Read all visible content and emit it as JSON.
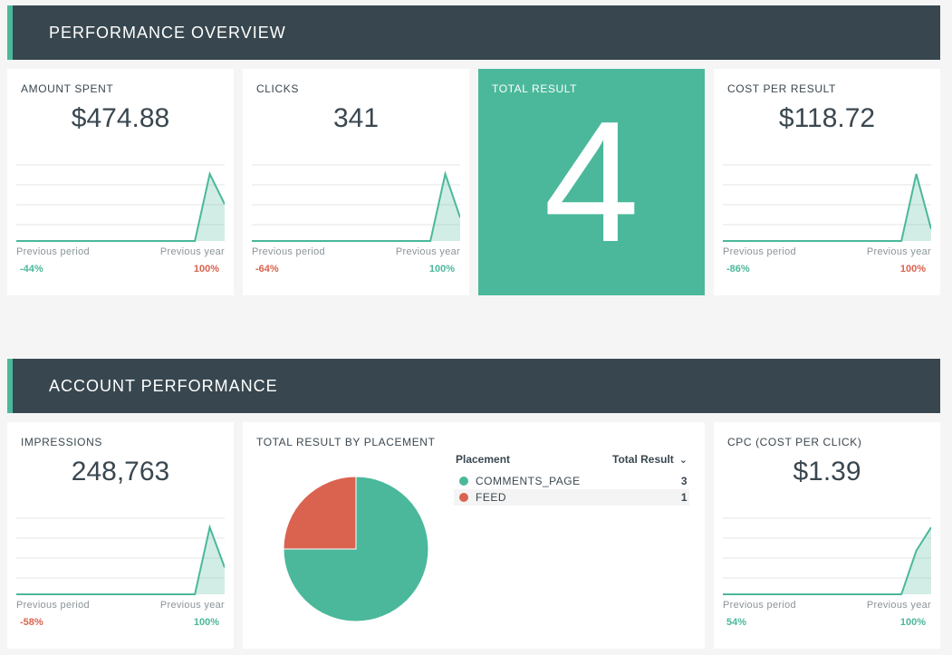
{
  "sections": {
    "performance_overview": "PERFORMANCE OVERVIEW",
    "account_performance": "ACCOUNT PERFORMANCE"
  },
  "colors": {
    "header_bg": "#38474f",
    "accent": "#4bb89b",
    "negative": "#d9634f"
  },
  "footer_labels": {
    "previous_period": "Previous period",
    "previous_year": "Previous year"
  },
  "cards": {
    "amount_spent": {
      "label": "AMOUNT SPENT",
      "value": "$474.88",
      "prev_period": "-44%",
      "prev_year": "100%",
      "spark": [
        0,
        0,
        0,
        0,
        0,
        0,
        0,
        0,
        0,
        0,
        0,
        0,
        0,
        1,
        0.55
      ]
    },
    "clicks": {
      "label": "CLICKS",
      "value": "341",
      "prev_period": "-64%",
      "prev_year": "100%",
      "spark": [
        0,
        0,
        0,
        0,
        0,
        0,
        0,
        0,
        0,
        0,
        0,
        0,
        0,
        1,
        0.35
      ]
    },
    "total_result": {
      "label": "TOTAL RESULT",
      "value": "4"
    },
    "cost_per_result": {
      "label": "COST PER RESULT",
      "value": "$118.72",
      "prev_period": "-86%",
      "prev_year": "100%",
      "spark": [
        0,
        0,
        0,
        0,
        0,
        0,
        0,
        0,
        0,
        0,
        0,
        0,
        0,
        1,
        0.18
      ]
    },
    "impressions": {
      "label": "IMPRESSIONS",
      "value": "248,763",
      "prev_period": "-58%",
      "prev_year": "100%",
      "spark": [
        0,
        0,
        0,
        0,
        0,
        0,
        0,
        0,
        0,
        0,
        0,
        0,
        0,
        1,
        0.4
      ]
    },
    "cpc": {
      "label": "CPC (COST PER CLICK)",
      "value": "$1.39",
      "prev_period": "54%",
      "prev_year": "100%",
      "spark": [
        0,
        0,
        0,
        0,
        0,
        0,
        0,
        0,
        0,
        0,
        0,
        0,
        0,
        0.65,
        1
      ]
    }
  },
  "placement": {
    "label": "TOTAL RESULT BY PLACEMENT",
    "col_placement": "Placement",
    "col_total": "Total Result",
    "sort_icon": "chevron-down-icon",
    "rows": [
      {
        "name": "COMMENTS_PAGE",
        "value": "3",
        "color": "#4bb89b"
      },
      {
        "name": "FEED",
        "value": "1",
        "color": "#d9634f"
      }
    ]
  },
  "chart_data": {
    "type": "pie",
    "categories": [
      "COMMENTS_PAGE",
      "FEED"
    ],
    "values": [
      3,
      1
    ],
    "title": "TOTAL RESULT BY PLACEMENT"
  }
}
